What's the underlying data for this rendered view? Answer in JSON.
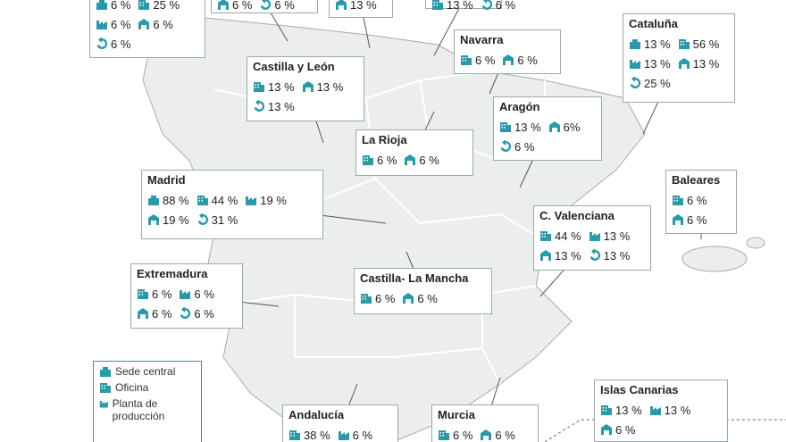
{
  "regions": [
    {
      "rows": [
        [
          {
            "kind": 0,
            "text": "6 %"
          },
          {
            "kind": 1,
            "text": "25 %"
          }
        ],
        [
          {
            "kind": 2,
            "text": "6 %"
          },
          {
            "kind": 3,
            "text": "6 %"
          }
        ],
        [
          {
            "kind": 4,
            "text": "6 %"
          }
        ]
      ]
    },
    {
      "rows": [
        [
          {
            "kind": 3,
            "text": "6 %"
          },
          {
            "kind": 4,
            "text": "6 %"
          }
        ]
      ]
    },
    {
      "rows": [
        [
          {
            "kind": 3,
            "text": "13 %"
          }
        ]
      ]
    },
    {
      "rows": [
        [
          {
            "kind": 1,
            "text": "13 %"
          },
          {
            "kind": 4,
            "text": "6 %"
          }
        ]
      ]
    },
    {
      "name": "Navarra",
      "rows": [
        [
          {
            "kind": 1,
            "text": "6 %"
          },
          {
            "kind": 3,
            "text": "6 %"
          }
        ]
      ]
    },
    {
      "name": "Cataluña",
      "rows": [
        [
          {
            "kind": 0,
            "text": "13 %"
          },
          {
            "kind": 1,
            "text": "56 %"
          }
        ],
        [
          {
            "kind": 2,
            "text": "13 %"
          },
          {
            "kind": 3,
            "text": "13 %"
          }
        ],
        [
          {
            "kind": 4,
            "text": "25 %"
          }
        ]
      ]
    },
    {
      "name": "Castilla y León",
      "rows": [
        [
          {
            "kind": 1,
            "text": "13 %"
          },
          {
            "kind": 3,
            "text": "13 %"
          }
        ],
        [
          {
            "kind": 4,
            "text": "13 %"
          }
        ]
      ]
    },
    {
      "name": "Aragón",
      "rows": [
        [
          {
            "kind": 1,
            "text": "13 %"
          },
          {
            "kind": 3,
            "text": "6%"
          }
        ],
        [
          {
            "kind": 4,
            "text": "6 %"
          }
        ]
      ]
    },
    {
      "name": "La Rioja",
      "rows": [
        [
          {
            "kind": 1,
            "text": "6 %"
          },
          {
            "kind": 3,
            "text": "6 %"
          }
        ]
      ]
    },
    {
      "name": "Madrid",
      "rows": [
        [
          {
            "kind": 0,
            "text": "88 %"
          },
          {
            "kind": 1,
            "text": "44 %"
          },
          {
            "kind": 2,
            "text": "19 %"
          }
        ],
        [
          {
            "kind": 3,
            "text": "19 %"
          },
          {
            "kind": 4,
            "text": "31 %"
          }
        ]
      ]
    },
    {
      "name": "Baleares",
      "rows": [
        [
          {
            "kind": 1,
            "text": "6 %"
          }
        ],
        [
          {
            "kind": 3,
            "text": "6 %"
          }
        ]
      ]
    },
    {
      "name": "C. Valenciana",
      "rows": [
        [
          {
            "kind": 1,
            "text": "44 %"
          },
          {
            "kind": 2,
            "text": "13 %"
          }
        ],
        [
          {
            "kind": 3,
            "text": "13 %"
          },
          {
            "kind": 4,
            "text": "13 %"
          }
        ]
      ]
    },
    {
      "name": "Extremadura",
      "rows": [
        [
          {
            "kind": 1,
            "text": "6 %"
          },
          {
            "kind": 2,
            "text": "6 %"
          }
        ],
        [
          {
            "kind": 3,
            "text": "6 %"
          },
          {
            "kind": 4,
            "text": "6 %"
          }
        ]
      ]
    },
    {
      "name": "Castilla- La Mancha",
      "rows": [
        [
          {
            "kind": 1,
            "text": "6 %"
          },
          {
            "kind": 3,
            "text": "6 %"
          }
        ]
      ]
    },
    {
      "name": "Andalucía",
      "rows": [
        [
          {
            "kind": 1,
            "text": "38 %"
          },
          {
            "kind": 2,
            "text": "6 %"
          }
        ]
      ]
    },
    {
      "name": "Murcia",
      "rows": [
        [
          {
            "kind": 1,
            "text": "6 %"
          },
          {
            "kind": 3,
            "text": "6 %"
          }
        ]
      ]
    },
    {
      "name": "Islas Canarias",
      "rows": [
        [
          {
            "kind": 1,
            "text": "13 %"
          },
          {
            "kind": 2,
            "text": "13 %"
          }
        ],
        [
          {
            "kind": 3,
            "text": "6 %"
          }
        ]
      ]
    }
  ],
  "legend": {
    "items": [
      {
        "kind": 0,
        "text": "Sede central"
      },
      {
        "kind": 1,
        "text": "Oficina"
      },
      {
        "kind": 2,
        "text": "Planta de producción"
      }
    ]
  }
}
